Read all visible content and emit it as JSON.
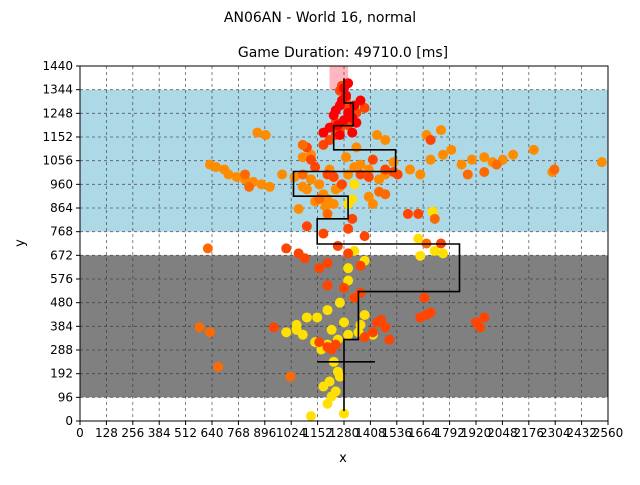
{
  "chart_data": {
    "type": "scatter",
    "suptitle": "AN06AN - World 16, normal",
    "title": "Game Duration: 49710.0 [ms]",
    "xlabel": "x",
    "ylabel": "y",
    "xlim": [
      0,
      2560
    ],
    "ylim": [
      0,
      1440
    ],
    "grid": true,
    "grid_style": "dashed",
    "x_ticks": [
      0,
      128,
      256,
      384,
      512,
      640,
      768,
      896,
      1024,
      1152,
      1280,
      1408,
      1536,
      1664,
      1792,
      1920,
      2048,
      2176,
      2304,
      2432,
      2560
    ],
    "y_ticks": [
      0,
      96,
      192,
      288,
      384,
      480,
      576,
      672,
      768,
      864,
      960,
      1056,
      1152,
      1248,
      1344,
      1440
    ],
    "regions": [
      {
        "name": "lower gray zone",
        "y_range": [
          96,
          672
        ],
        "color": "#808080"
      },
      {
        "name": "upper blue zone",
        "y_range": [
          768,
          1344
        ],
        "color": "#add8e6"
      },
      {
        "name": "goal area",
        "x_range": [
          1210,
          1300
        ],
        "y_range": [
          1344,
          1440
        ],
        "color": "#ffb6c1"
      }
    ],
    "path": {
      "color": "#000000",
      "points": [
        [
          1280,
          40
        ],
        [
          1280,
          330
        ],
        [
          1350,
          330
        ],
        [
          1350,
          525
        ],
        [
          1840,
          525
        ],
        [
          1840,
          718
        ],
        [
          1150,
          718
        ],
        [
          1150,
          820
        ],
        [
          1300,
          820
        ],
        [
          1300,
          912
        ],
        [
          1035,
          912
        ],
        [
          1035,
          1012
        ],
        [
          1530,
          1012
        ],
        [
          1530,
          1100
        ],
        [
          1230,
          1100
        ],
        [
          1230,
          1198
        ],
        [
          1325,
          1198
        ],
        [
          1325,
          1290
        ],
        [
          1280,
          1290
        ],
        [
          1280,
          1390
        ]
      ],
      "start_marker": {
        "x": [
          1150,
          1430
        ],
        "y": 240
      }
    },
    "series": [
      {
        "color": "#ffe000",
        "points": [
          [
            1200,
            70
          ],
          [
            1220,
            100
          ],
          [
            1240,
            120
          ],
          [
            1180,
            140
          ],
          [
            1210,
            160
          ],
          [
            1250,
            200
          ],
          [
            1260,
            180
          ],
          [
            1230,
            240
          ],
          [
            1170,
            290
          ],
          [
            1200,
            310
          ],
          [
            1250,
            330
          ],
          [
            1300,
            350
          ],
          [
            1220,
            370
          ],
          [
            1280,
            400
          ],
          [
            1150,
            420
          ],
          [
            1200,
            450
          ],
          [
            1260,
            480
          ],
          [
            1330,
            500
          ],
          [
            1360,
            390
          ],
          [
            1420,
            350
          ],
          [
            1380,
            430
          ],
          [
            1000,
            360
          ],
          [
            1050,
            370
          ],
          [
            1080,
            350
          ],
          [
            1100,
            420
          ],
          [
            1050,
            390
          ],
          [
            1300,
            570
          ],
          [
            1330,
            690
          ],
          [
            1380,
            650
          ],
          [
            1300,
            620
          ],
          [
            1650,
            670
          ],
          [
            1720,
            690
          ],
          [
            1760,
            680
          ],
          [
            1640,
            740
          ],
          [
            1710,
            850
          ],
          [
            1300,
            880
          ],
          [
            1320,
            900
          ],
          [
            1330,
            960
          ],
          [
            1120,
            20
          ],
          [
            1280,
            30
          ],
          [
            1140,
            320
          ],
          [
            1350,
            360
          ]
        ]
      },
      {
        "color": "#ff8c00",
        "points": [
          [
            630,
            1040
          ],
          [
            660,
            1030
          ],
          [
            700,
            1020
          ],
          [
            720,
            1000
          ],
          [
            760,
            990
          ],
          [
            800,
            980
          ],
          [
            840,
            970
          ],
          [
            880,
            960
          ],
          [
            920,
            950
          ],
          [
            980,
            1000
          ],
          [
            1040,
            990
          ],
          [
            1080,
            950
          ],
          [
            1100,
            940
          ],
          [
            1120,
            980
          ],
          [
            1160,
            960
          ],
          [
            1180,
            920
          ],
          [
            1200,
            900
          ],
          [
            1230,
            880
          ],
          [
            1240,
            940
          ],
          [
            1260,
            950
          ],
          [
            1300,
            1000
          ],
          [
            1330,
            1030
          ],
          [
            1360,
            1040
          ],
          [
            1400,
            1020
          ],
          [
            1450,
            980
          ],
          [
            1480,
            1000
          ],
          [
            1520,
            1050
          ],
          [
            1600,
            1020
          ],
          [
            1650,
            1000
          ],
          [
            1700,
            1060
          ],
          [
            1760,
            1080
          ],
          [
            1850,
            1040
          ],
          [
            1900,
            1060
          ],
          [
            1960,
            1070
          ],
          [
            2000,
            1050
          ],
          [
            2050,
            1060
          ],
          [
            2100,
            1080
          ],
          [
            2200,
            1100
          ],
          [
            2290,
            1010
          ],
          [
            2530,
            1050
          ],
          [
            860,
            1170
          ],
          [
            900,
            1160
          ],
          [
            1120,
            1080
          ],
          [
            1080,
            1070
          ],
          [
            1440,
            1160
          ],
          [
            1480,
            1140
          ],
          [
            1680,
            1160
          ],
          [
            1750,
            1180
          ],
          [
            1800,
            1100
          ],
          [
            1400,
            910
          ],
          [
            1420,
            880
          ],
          [
            1190,
            870
          ],
          [
            1140,
            890
          ],
          [
            1060,
            860
          ],
          [
            1210,
            1020
          ],
          [
            1290,
            1070
          ],
          [
            1340,
            1110
          ]
        ]
      },
      {
        "color": "#ff4500",
        "points": [
          [
            1180,
            1120
          ],
          [
            1210,
            1140
          ],
          [
            1240,
            1160
          ],
          [
            1260,
            1180
          ],
          [
            1300,
            1200
          ],
          [
            1320,
            1220
          ],
          [
            1340,
            1250
          ],
          [
            1380,
            1270
          ],
          [
            1300,
            1280
          ],
          [
            1290,
            1310
          ],
          [
            1260,
            1340
          ],
          [
            1270,
            1360
          ],
          [
            1220,
            1190
          ],
          [
            1240,
            1210
          ],
          [
            1100,
            1110
          ],
          [
            1120,
            1060
          ],
          [
            1140,
            1030
          ],
          [
            1200,
            1000
          ],
          [
            1230,
            990
          ],
          [
            1270,
            960
          ],
          [
            1360,
            1000
          ],
          [
            1400,
            990
          ],
          [
            1420,
            1060
          ],
          [
            1640,
            840
          ],
          [
            1590,
            840
          ],
          [
            1750,
            720
          ],
          [
            1380,
            750
          ],
          [
            1180,
            760
          ],
          [
            1250,
            710
          ],
          [
            1000,
            700
          ],
          [
            1060,
            680
          ],
          [
            1090,
            660
          ],
          [
            1300,
            680
          ],
          [
            1360,
            630
          ],
          [
            1200,
            640
          ],
          [
            1160,
            620
          ],
          [
            1200,
            550
          ],
          [
            1280,
            540
          ],
          [
            1330,
            500
          ],
          [
            1380,
            340
          ],
          [
            1420,
            360
          ],
          [
            1480,
            380
          ],
          [
            1440,
            400
          ],
          [
            1500,
            330
          ],
          [
            1650,
            420
          ],
          [
            1680,
            430
          ],
          [
            1700,
            440
          ],
          [
            1670,
            500
          ],
          [
            1920,
            400
          ],
          [
            1960,
            420
          ],
          [
            1940,
            380
          ],
          [
            1700,
            1140
          ],
          [
            1320,
            820
          ],
          [
            1300,
            780
          ],
          [
            1100,
            790
          ],
          [
            1480,
            1020
          ],
          [
            1540,
            1000
          ],
          [
            1520,
            1010
          ],
          [
            1240,
            310
          ],
          [
            1220,
            290
          ],
          [
            1200,
            300
          ],
          [
            1160,
            320
          ],
          [
            940,
            380
          ],
          [
            1460,
            410
          ],
          [
            1360,
            520
          ]
        ]
      },
      {
        "color": "#ff0000",
        "points": [
          [
            1270,
            1300
          ],
          [
            1290,
            1320
          ],
          [
            1260,
            1280
          ],
          [
            1240,
            1260
          ],
          [
            1300,
            1250
          ],
          [
            1320,
            1230
          ],
          [
            1340,
            1210
          ],
          [
            1280,
            1220
          ],
          [
            1230,
            1240
          ],
          [
            1250,
            1200
          ],
          [
            1330,
            1280
          ],
          [
            1360,
            1300
          ],
          [
            1280,
            1350
          ],
          [
            1300,
            1370
          ],
          [
            1210,
            1190
          ],
          [
            1320,
            1170
          ],
          [
            1180,
            1170
          ],
          [
            1260,
            1160
          ]
        ]
      },
      {
        "color": "#ff6a00",
        "points": [
          [
            580,
            380
          ],
          [
            630,
            360
          ],
          [
            670,
            220
          ],
          [
            1020,
            180
          ],
          [
            1080,
            1000
          ],
          [
            620,
            700
          ],
          [
            1680,
            720
          ],
          [
            1720,
            820
          ],
          [
            800,
            1000
          ],
          [
            820,
            950
          ],
          [
            1080,
            1120
          ],
          [
            1200,
            840
          ],
          [
            1450,
            930
          ],
          [
            1160,
            900
          ],
          [
            1480,
            920
          ],
          [
            1880,
            1000
          ],
          [
            1960,
            1010
          ],
          [
            2020,
            1040
          ],
          [
            2300,
            1020
          ]
        ]
      }
    ]
  }
}
